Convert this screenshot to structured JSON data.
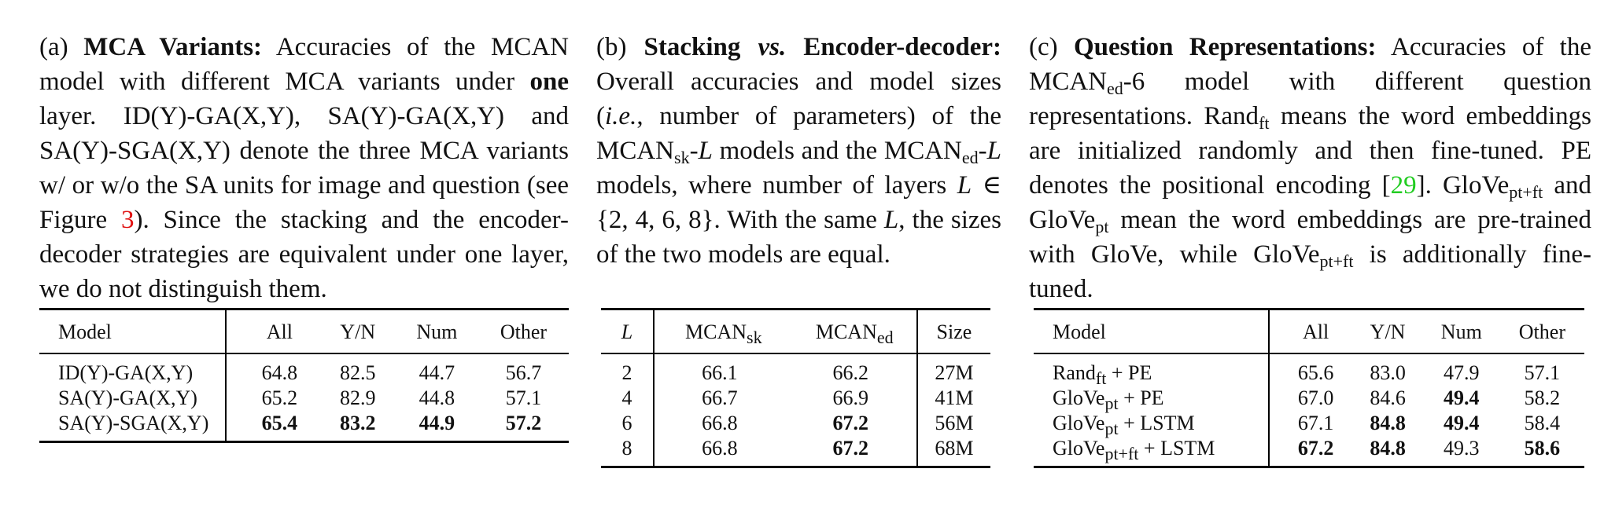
{
  "panel_a": {
    "label": "(a)",
    "title": "MCA Variants:",
    "text1": "Accuracies of the MCAN model with different MCA variants under",
    "one": "one",
    "text2": "layer. ID(Y)-GA(X,Y), SA(Y)-GA(X,Y) and SA(Y)-SGA(X,Y) denote the three MCA variants w/ or w/o the SA units for image and question (see Figure",
    "fig_ref": "3",
    "text3": "). Since the stacking and the encoder-decoder strategies are equivalent under one layer, we do not distinguish them.",
    "table": {
      "headers": [
        "Model",
        "All",
        "Y/N",
        "Num",
        "Other"
      ],
      "rows": [
        [
          "ID(Y)-GA(X,Y)",
          "64.8",
          "82.5",
          "44.7",
          "56.7"
        ],
        [
          "SA(Y)-GA(X,Y)",
          "65.2",
          "82.9",
          "44.8",
          "57.1"
        ],
        [
          "SA(Y)-SGA(X,Y)",
          "65.4",
          "83.2",
          "44.9",
          "57.2"
        ]
      ]
    }
  },
  "panel_b": {
    "label": "(b)",
    "title_1": "Stacking",
    "title_vs": "vs.",
    "title_2": "Encoder-decoder:",
    "text1": "Overall accuracies and model sizes (",
    "ie": "i.e.",
    "text2": ", number of parameters) of the MCAN",
    "sk": "sk",
    "L": "L",
    "text3": "models and the MCAN",
    "ed": "ed",
    "text4": "models, where number of layers",
    "set": "∈ {2, 4, 6, 8}",
    "text5": ". With the same",
    "text6": ", the sizes of the two models are equal.",
    "table": {
      "headers": [
        "L",
        "MCAN",
        "sk",
        "MCAN",
        "ed",
        "Size"
      ],
      "rows": [
        [
          "2",
          "66.1",
          "66.2",
          "27M"
        ],
        [
          "4",
          "66.7",
          "66.9",
          "41M"
        ],
        [
          "6",
          "66.8",
          "67.2",
          "56M"
        ],
        [
          "8",
          "66.8",
          "67.2",
          "68M"
        ]
      ]
    }
  },
  "panel_c": {
    "label": "(c)",
    "title": "Question Representations:",
    "text1": "Accuracies of the MCAN",
    "ed": "ed",
    "text2": "-6 model with different question representations. Rand",
    "ft": "ft",
    "text3": "means the word embeddings are initialized randomly and then fine-tuned. PE denotes the positional encoding [",
    "cite": "29",
    "text4": "]. GloVe",
    "ptft": "pt+ft",
    "text5": "and GloVe",
    "pt": "pt",
    "text6": "mean the word embeddings are pre-trained with GloVe, while GloVe",
    "text7": "is additionally fine-tuned.",
    "table": {
      "headers": [
        "Model",
        "All",
        "Y/N",
        "Num",
        "Other"
      ],
      "rows": [
        {
          "base": "Rand",
          "sub": "ft",
          "suffix": " + PE",
          "vals": [
            "65.6",
            "83.0",
            "47.9",
            "57.1"
          ]
        },
        {
          "base": "GloVe",
          "sub": "pt",
          "suffix": " + PE",
          "vals": [
            "67.0",
            "84.6",
            "49.4",
            "58.2"
          ]
        },
        {
          "base": "GloVe",
          "sub": "pt",
          "suffix": " + LSTM",
          "vals": [
            "67.1",
            "84.8",
            "49.4",
            "58.4"
          ]
        },
        {
          "base": "GloVe",
          "sub": "pt+ft",
          "suffix": " + LSTM",
          "vals": [
            "67.2",
            "84.8",
            "49.3",
            "58.6"
          ]
        }
      ]
    }
  }
}
